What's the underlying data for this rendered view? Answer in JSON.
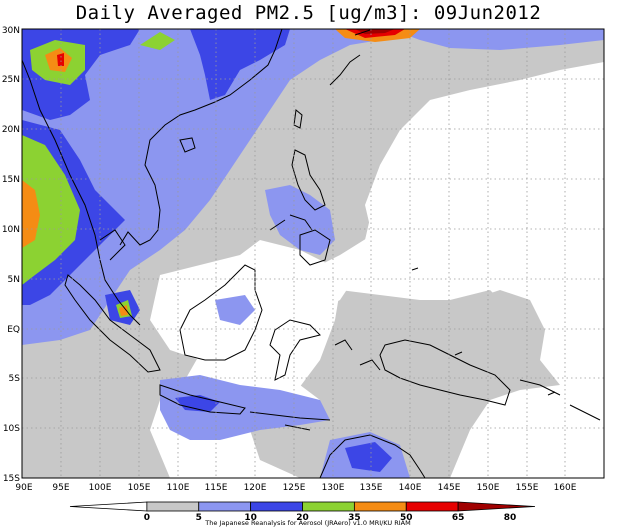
{
  "title": "Daily Averaged PM2.5 [ug/m3]: 09Jun2012",
  "map": {
    "lat_labels": [
      "30N",
      "25N",
      "20N",
      "15N",
      "10N",
      "5N",
      "EQ",
      "5S",
      "10S",
      "15S"
    ],
    "lon_labels": [
      "90E",
      "95E",
      "100E",
      "105E",
      "110E",
      "115E",
      "120E",
      "125E",
      "130E",
      "135E",
      "140E",
      "145E",
      "150E",
      "155E",
      "160E"
    ],
    "gridlines": "dotted"
  },
  "legend": {
    "boundaries": [
      "0",
      "5",
      "10",
      "20",
      "35",
      "50",
      "65",
      "80"
    ],
    "colors": [
      "#ffffff",
      "#c8c8c8",
      "#8c96f0",
      "#3c46e6",
      "#8cd232",
      "#f58c14",
      "#e60000",
      "#a00000"
    ],
    "credit": "The Japanese Reanalysis for Aerosol (JRAero) v1.0 MRI/KU RIAM"
  },
  "colors": {
    "low": "#c8c8c8",
    "mid": "#8c96f0",
    "high": "#3c46e6",
    "green": "#8cd232",
    "orange": "#f58c14",
    "red": "#e60000",
    "darkred": "#a00000"
  }
}
